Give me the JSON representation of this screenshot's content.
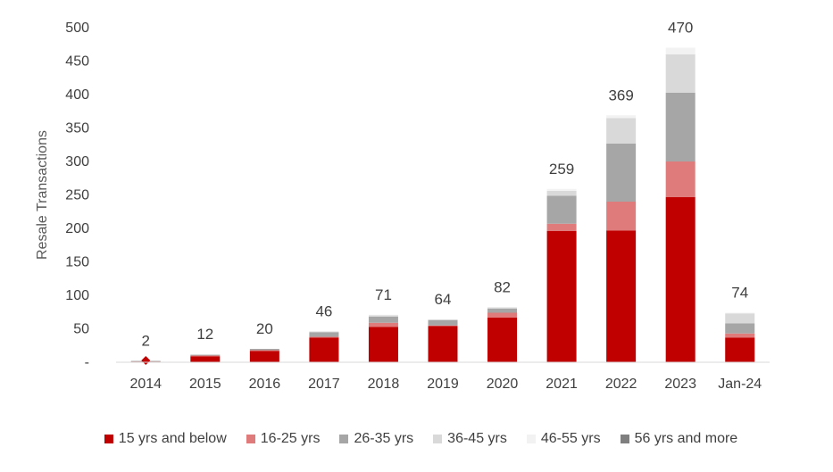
{
  "chart_data": {
    "type": "bar",
    "stacked": true,
    "title": "",
    "xlabel": "",
    "ylabel": "Resale Transactions",
    "ylim": [
      0,
      500
    ],
    "y_ticks": [
      0,
      50,
      100,
      150,
      200,
      250,
      300,
      350,
      400,
      450,
      500
    ],
    "y_tick_labels": [
      "-",
      "50",
      "100",
      "150",
      "200",
      "250",
      "300",
      "350",
      "400",
      "450",
      "500"
    ],
    "grid": false,
    "legend_position": "bottom",
    "categories": [
      "2014",
      "2015",
      "2016",
      "2017",
      "2018",
      "2019",
      "2020",
      "2021",
      "2022",
      "2023",
      "Jan-24"
    ],
    "totals": [
      2,
      12,
      20,
      46,
      71,
      64,
      82,
      259,
      369,
      470,
      74
    ],
    "series": [
      {
        "name": "15 yrs and below",
        "color": "#c00000",
        "values": [
          1,
          9,
          17,
          37,
          53,
          54,
          67,
          196,
          197,
          247,
          37
        ]
      },
      {
        "name": "16-25 yrs",
        "color": "#e07b7b",
        "values": [
          0,
          1,
          1,
          1,
          6,
          1,
          7,
          11,
          43,
          53,
          6
        ]
      },
      {
        "name": "26-35 yrs",
        "color": "#a6a6a6",
        "values": [
          1,
          1,
          2,
          7,
          9,
          8,
          6,
          42,
          87,
          103,
          15
        ]
      },
      {
        "name": "36-45 yrs",
        "color": "#d9d9d9",
        "values": [
          0,
          1,
          0,
          1,
          2,
          1,
          2,
          7,
          38,
          57,
          15
        ]
      },
      {
        "name": "46-55 yrs",
        "color": "#f2f2f2",
        "values": [
          0,
          0,
          0,
          0,
          1,
          0,
          0,
          3,
          4,
          10,
          1
        ]
      },
      {
        "name": "56 yrs and more",
        "color": "#7f7f7f",
        "values": [
          0,
          0,
          0,
          0,
          0,
          0,
          0,
          0,
          0,
          0,
          0
        ]
      }
    ],
    "marker": {
      "category": "2014",
      "shape": "diamond",
      "color": "#c00000"
    },
    "axis_color": "#d9d9d9",
    "text_color": "#404040"
  }
}
